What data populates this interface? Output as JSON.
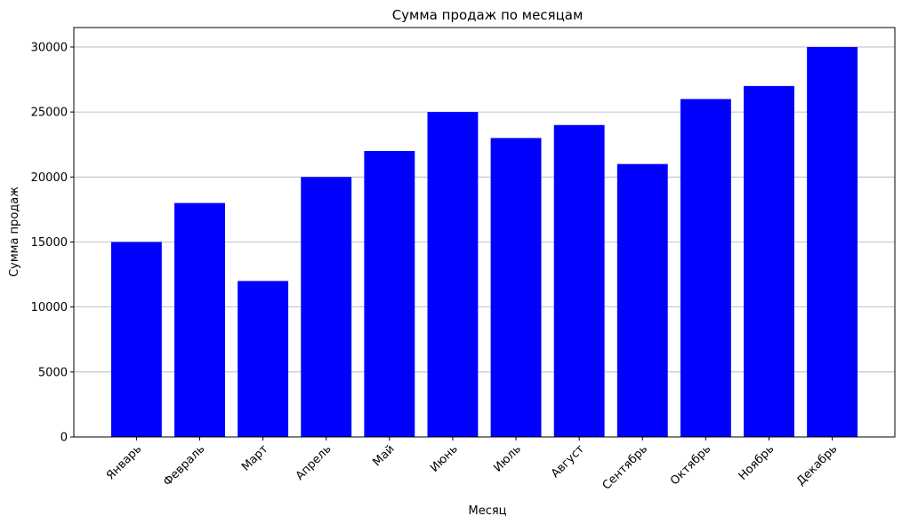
{
  "chart_data": {
    "type": "bar",
    "title": "Сумма продаж по месяцам",
    "x_label": "Месяц",
    "y_label": "Сумма продаж",
    "categories": [
      "Январь",
      "Февраль",
      "Март",
      "Апрель",
      "Май",
      "Июнь",
      "Июль",
      "Август",
      "Сентябрь",
      "Октябрь",
      "Ноябрь",
      "Декабрь"
    ],
    "values": [
      15000,
      18000,
      12000,
      20000,
      22000,
      25000,
      23000,
      24000,
      21000,
      26000,
      27000,
      30000
    ],
    "color": "#0000ff",
    "ylim": [
      0,
      31500
    ],
    "yticks": [
      0,
      5000,
      10000,
      15000,
      20000,
      25000,
      30000
    ],
    "grid": true
  }
}
